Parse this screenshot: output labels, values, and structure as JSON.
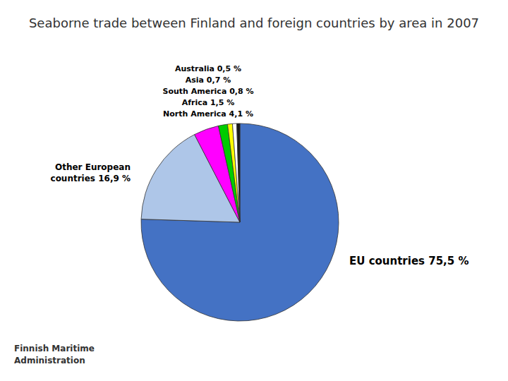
{
  "chart_data": {
    "type": "pie",
    "title": "Seaborne trade between Finland and foreign countries by area in 2007",
    "categories": [
      "EU countries 75,5 %",
      "Other European\ncountries 16,9  %",
      "North America 4,1 %",
      "Africa  1,5 %",
      "South America 0,8 %",
      "Asia 0,7 %",
      "Australia 0,5 %"
    ],
    "values": [
      75.5,
      16.9,
      4.1,
      1.5,
      0.8,
      0.7,
      0.5
    ],
    "colors": [
      "#4472c4",
      "#aec6e8",
      "#ff00ff",
      "#00cc00",
      "#ffff00",
      "#ffffff",
      "#1a1a1a"
    ],
    "annotations": [
      "Finnish Maritime\nAdministration"
    ]
  }
}
